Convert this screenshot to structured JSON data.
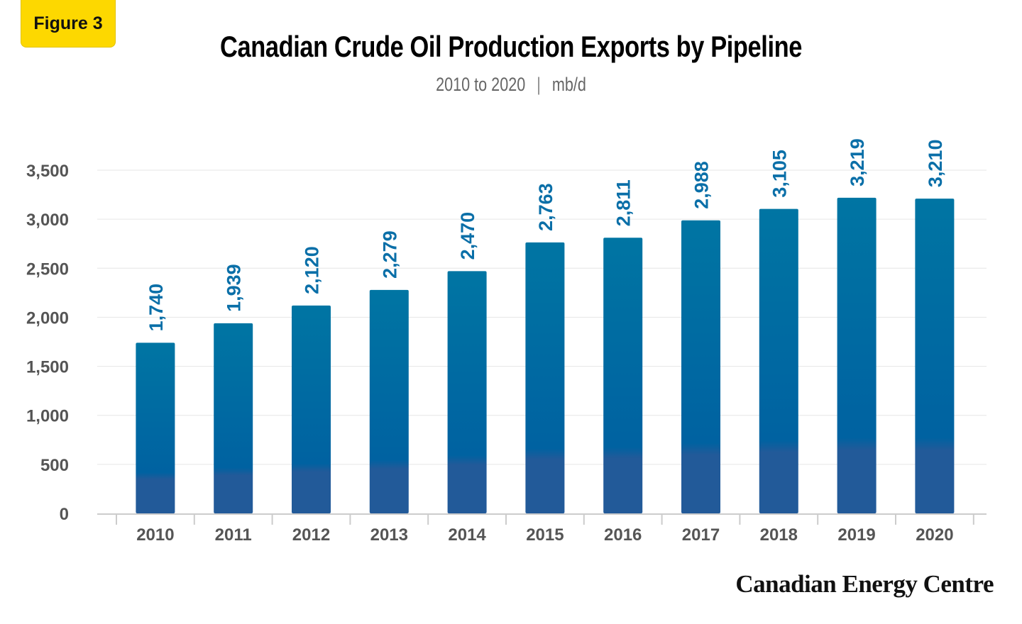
{
  "badge": "Figure 3",
  "brand": "Canadian Energy Centre",
  "colors": {
    "bar_top": "#0075a3",
    "bar_mid": "#0062a1",
    "bar_bottom": "#225a99",
    "label": "#0a6fa8",
    "badge": "#fdd800"
  },
  "chart_data": {
    "type": "bar",
    "title": "Canadian Crude Oil Production Exports by Pipeline",
    "subtitle_period": "2010 to 2020",
    "subtitle_unit": "mb/d",
    "categories": [
      "2010",
      "2011",
      "2012",
      "2013",
      "2014",
      "2015",
      "2016",
      "2017",
      "2018",
      "2019",
      "2020"
    ],
    "values": [
      1740,
      1939,
      2120,
      2279,
      2470,
      2763,
      2811,
      2988,
      3105,
      3219,
      3210
    ],
    "data_labels": [
      "1,740",
      "1,939",
      "2,120",
      "2,279",
      "2,470",
      "2,763",
      "2,811",
      "2,988",
      "3,105",
      "3,219",
      "3,210"
    ],
    "yticks": [
      0,
      500,
      1000,
      1500,
      2000,
      2500,
      3000,
      3500
    ],
    "ytick_labels": [
      "0",
      "500",
      "1,000",
      "1,500",
      "2,000",
      "2,500",
      "3,000",
      "3,500"
    ],
    "ylim": [
      0,
      3500
    ],
    "grid": true,
    "xlabel": "",
    "ylabel": ""
  }
}
